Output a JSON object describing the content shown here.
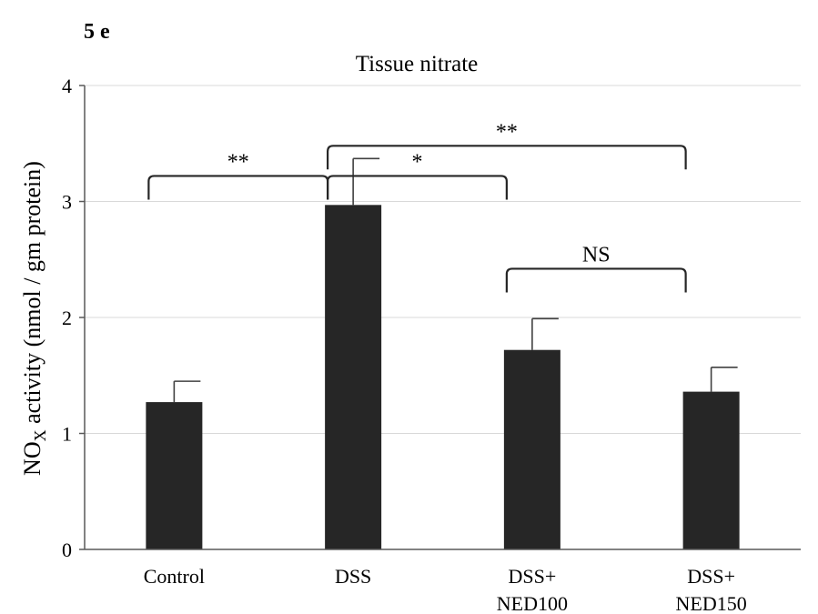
{
  "panel_label": "5 e",
  "chart_data": {
    "type": "bar",
    "title": "Tissue nitrate",
    "ylabel_main": "NO",
    "ylabel_sub": "X",
    "ylabel_rest": " activity (nmol / gm protein)",
    "xlabel": "",
    "ylim": [
      0,
      4
    ],
    "yticks": [
      "0",
      "1",
      "2",
      "3",
      "4"
    ],
    "grid": true,
    "categories": [
      [
        "Control"
      ],
      [
        "DSS"
      ],
      [
        "DSS+",
        "NED100"
      ],
      [
        "DSS+",
        "NED150"
      ]
    ],
    "values": [
      1.27,
      2.97,
      1.72,
      1.36
    ],
    "errors": [
      0.18,
      0.4,
      0.27,
      0.21
    ],
    "bar_color": "#262626",
    "significance": [
      {
        "from": 0,
        "to": 1,
        "y": 3.22,
        "label": "**"
      },
      {
        "from": 1,
        "to": 2,
        "y": 3.22,
        "label": "*"
      },
      {
        "from": 1,
        "to": 3,
        "y": 3.48,
        "label": "**"
      },
      {
        "from": 2,
        "to": 3,
        "y": 2.42,
        "label": "NS"
      }
    ]
  }
}
